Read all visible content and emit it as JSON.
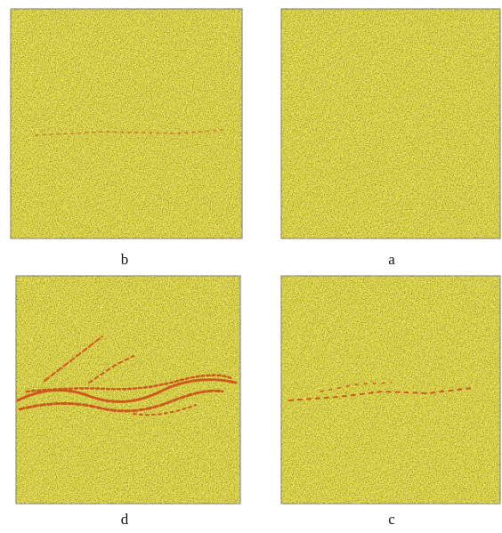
{
  "panels": [
    {
      "label": "b"
    },
    {
      "label": "a"
    },
    {
      "label": "d"
    },
    {
      "label": "c"
    }
  ]
}
